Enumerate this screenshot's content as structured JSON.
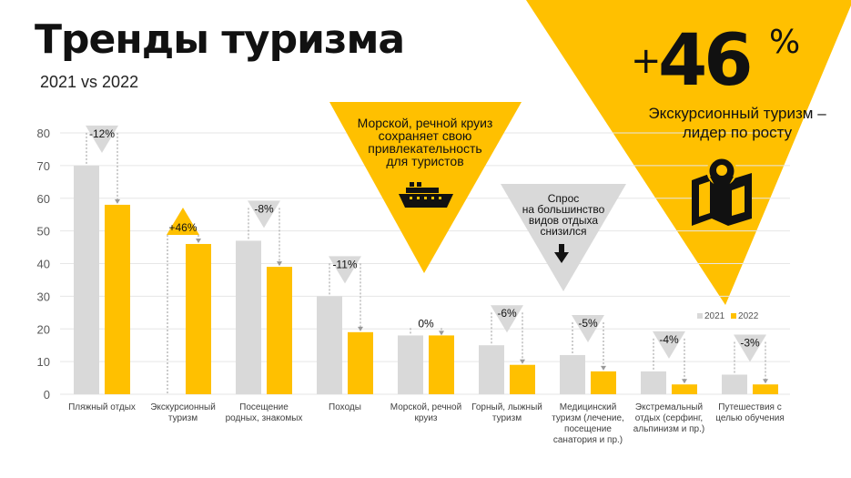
{
  "title": "Тренды туризма",
  "subtitle": "2021 vs 2022",
  "headline": {
    "plus": "+",
    "number": "46",
    "percent_sign": "%",
    "text": "Экскурсионный туризм – лидер по росту",
    "icon": "map-pin-icon"
  },
  "callouts": {
    "cruise": {
      "lines": [
        "Морской, речной круиз",
        "сохраняет свою",
        "привлекательность",
        "для туристов"
      ],
      "icon": "ship-icon"
    },
    "demand": {
      "lines": [
        "Спрос",
        "на большинство",
        "видов отдыха",
        "снизился"
      ],
      "icon": "arrow-down-icon"
    }
  },
  "colors": {
    "y2021": "#d9d9d9",
    "y2022": "#ffc000",
    "accent": "#ffc000",
    "grey_triangle": "#d9d9d9",
    "grid": "#e6e6e6",
    "text": "#1a1a1a"
  },
  "chart_data": {
    "type": "bar",
    "categories": [
      "Пляжный отдых",
      "Экскурсионный туризм",
      "Посещение родных, знакомых",
      "Походы",
      "Морской, речной круиз",
      "Горный, лыжный туризм",
      "Медицинский туризм (лечение, посещение санатория и пр.)",
      "Экстремальный отдых (серфинг, альпинизм и пр.)",
      "Путешествия с целью обучения"
    ],
    "series": [
      {
        "name": "2021",
        "values": [
          70,
          0,
          47,
          30,
          18,
          15,
          12,
          7,
          6
        ]
      },
      {
        "name": "2022",
        "values": [
          58,
          46,
          39,
          19,
          18,
          9,
          7,
          3,
          3
        ]
      }
    ],
    "changes": [
      "-12%",
      "+46%",
      "-8%",
      "-11%",
      "0%",
      "-6%",
      "-5%",
      "-4%",
      "-3%"
    ],
    "yticks": [
      0,
      10,
      20,
      30,
      40,
      50,
      60,
      70,
      80
    ],
    "ylim": [
      0,
      80
    ],
    "grid": true,
    "legend": "bottom-right"
  }
}
